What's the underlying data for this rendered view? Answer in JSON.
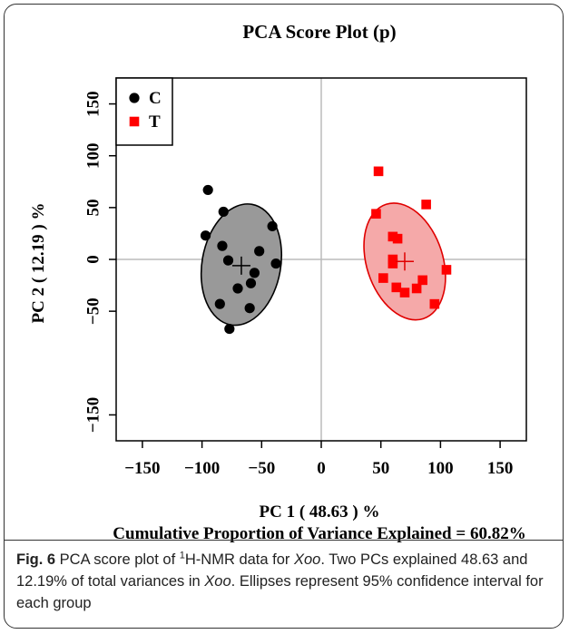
{
  "chart_data": {
    "type": "scatter",
    "title": "PCA Score Plot (p)",
    "xlabel": "PC 1  ( 48.63 ) %",
    "xlabel2": "Cumulative Proportion of Variance Explained = 60.82%",
    "ylabel": "PC 2  ( 12.19 ) %",
    "xlim": [
      -172,
      172
    ],
    "ylim": [
      -175,
      175
    ],
    "xticks": [
      -150,
      -100,
      -50,
      0,
      50,
      100,
      150
    ],
    "xtick_labels": [
      "−150",
      "−100",
      "−50",
      "0",
      "50",
      "100",
      "150"
    ],
    "yticks": [
      -150,
      -50,
      0,
      50,
      100,
      150
    ],
    "ytick_labels": [
      "−150",
      "−50",
      "0",
      "50",
      "100",
      "150"
    ],
    "legend_position": "top-left",
    "zero_lines": true,
    "series": [
      {
        "name": "C",
        "marker": "circle",
        "color": "#000000",
        "ellipse_fill": "#999999",
        "center": [
          -67,
          -6
        ],
        "ellipse": {
          "cx": -67,
          "cy": -5,
          "rx": 33,
          "ry": 59,
          "angle": 10
        },
        "points": [
          [
            -95,
            67
          ],
          [
            -97,
            23
          ],
          [
            -82,
            46
          ],
          [
            -83,
            13
          ],
          [
            -78,
            -1
          ],
          [
            -70,
            -28
          ],
          [
            -59,
            -23
          ],
          [
            -56,
            -13
          ],
          [
            -52,
            8
          ],
          [
            -41,
            32
          ],
          [
            -38,
            -4
          ],
          [
            -85,
            -43
          ],
          [
            -60,
            -47
          ],
          [
            -77,
            -67
          ]
        ]
      },
      {
        "name": "T",
        "marker": "square",
        "color": "#ff0000",
        "ellipse_fill": "#f5a9a9",
        "center": [
          70,
          -2
        ],
        "ellipse": {
          "cx": 70,
          "cy": -2,
          "rx": 32,
          "ry": 58,
          "angle": -18
        },
        "points": [
          [
            48,
            85
          ],
          [
            46,
            44
          ],
          [
            88,
            53
          ],
          [
            60,
            22
          ],
          [
            64,
            20
          ],
          [
            60,
            0
          ],
          [
            60,
            -4
          ],
          [
            105,
            -10
          ],
          [
            52,
            -18
          ],
          [
            85,
            -20
          ],
          [
            63,
            -27
          ],
          [
            80,
            -28
          ],
          [
            70,
            -32
          ],
          [
            95,
            -43
          ]
        ]
      }
    ]
  },
  "caption": {
    "label": "Fig. 6",
    "text_before_sup": " PCA score plot of ",
    "sup": "1",
    "text_after_sup": "H-NMR data for ",
    "italic1": "Xoo",
    "text_mid": ". Two PCs explained 48.63 and 12.19% of total variances in ",
    "italic2": "Xoo",
    "text_end": ". Ellipses represent 95% confidence interval for each group"
  }
}
